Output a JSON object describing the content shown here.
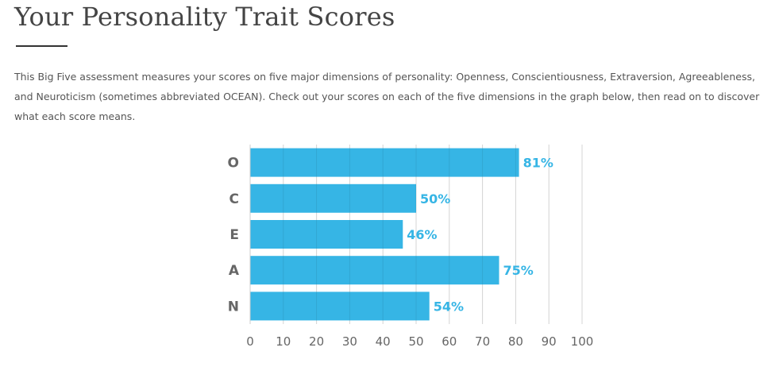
{
  "page": {
    "title": "Your Personality Trait Scores",
    "intro": "This Big Five assessment measures your scores on five major dimensions of personality: Openness, Conscientiousness, Extraversion, Agreeableness, and Neuroticism (sometimes abbreviated OCEAN). Check out your scores on each of the five dimensions in the graph below, then read on to discover what each score means."
  },
  "colors": {
    "bar": "#36b5e5",
    "label": "#36b5e5",
    "category": "#666666",
    "tick": "#666666",
    "grid": "#e6e6e6"
  },
  "chart_data": {
    "type": "bar",
    "orientation": "horizontal",
    "categories": [
      "O",
      "C",
      "E",
      "A",
      "N"
    ],
    "values": [
      81,
      50,
      46,
      75,
      54
    ],
    "value_labels": [
      "81%",
      "50%",
      "46%",
      "75%",
      "54%"
    ],
    "xlim": [
      0,
      100
    ],
    "xticks": [
      "0",
      "10",
      "20",
      "30",
      "40",
      "50",
      "60",
      "70",
      "80",
      "90",
      "100"
    ],
    "grid": true,
    "title": "",
    "xlabel": "",
    "ylabel": ""
  }
}
